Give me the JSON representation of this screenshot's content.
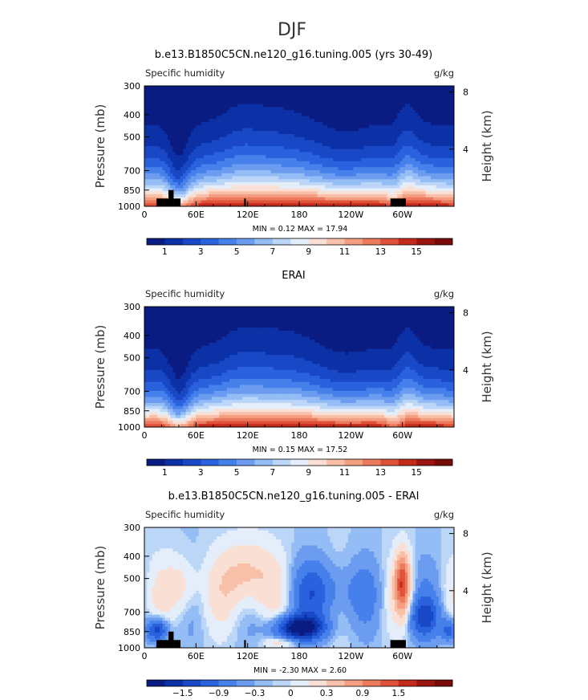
{
  "page_title": "DJF",
  "chart_data": [
    {
      "type": "heatmap",
      "title": "b.e13.B1850C5CN.ne120_g16.tuning.005 (yrs 30-49)",
      "variable_label": "Specific humidity",
      "units_label": "g/kg",
      "ylabel": "Pressure (mb)",
      "y2label": "Height (km)",
      "x_ticks": [
        "0",
        "60E",
        "120E",
        "180",
        "120W",
        "60W"
      ],
      "x_tick_lon": [
        0,
        60,
        120,
        180,
        240,
        300
      ],
      "xlim": [
        0,
        360
      ],
      "y_ticks": [
        "300",
        "400",
        "500",
        "700",
        "850",
        "1000"
      ],
      "y_tick_p": [
        300,
        400,
        500,
        700,
        850,
        1000
      ],
      "ylim": [
        300,
        1000
      ],
      "y2_ticks": [
        "8",
        "4"
      ],
      "y2_tick_km": [
        8,
        4
      ],
      "stats_text": "MIN =    0.12   MAX =   17.94",
      "min": 0.12,
      "max": 17.94,
      "colorbar_labels": [
        "1",
        "3",
        "5",
        "7",
        "9",
        "11",
        "13",
        "15"
      ],
      "colorbar_colors": [
        "#0a1c82",
        "#0c30a6",
        "#1848c6",
        "#2a62de",
        "#4680ea",
        "#6c9cf0",
        "#94bcf5",
        "#bcd6f8",
        "#e4eefb",
        "#fae0d4",
        "#f8c0a8",
        "#f49e82",
        "#ec7a5c",
        "#e05238",
        "#c42a1c",
        "#9a1410",
        "#780a08"
      ]
    },
    {
      "type": "heatmap",
      "title": "ERAI",
      "variable_label": "Specific humidity",
      "units_label": "g/kg",
      "ylabel": "Pressure (mb)",
      "y2label": "Height (km)",
      "x_ticks": [
        "0",
        "60E",
        "120E",
        "180",
        "120W",
        "60W"
      ],
      "x_tick_lon": [
        0,
        60,
        120,
        180,
        240,
        300
      ],
      "xlim": [
        0,
        360
      ],
      "y_ticks": [
        "300",
        "400",
        "500",
        "700",
        "850",
        "1000"
      ],
      "y_tick_p": [
        300,
        400,
        500,
        700,
        850,
        1000
      ],
      "ylim": [
        300,
        1000
      ],
      "y2_ticks": [
        "8",
        "4"
      ],
      "y2_tick_km": [
        8,
        4
      ],
      "stats_text": "MIN =    0.15   MAX =   17.52",
      "min": 0.15,
      "max": 17.52,
      "colorbar_labels": [
        "1",
        "3",
        "5",
        "7",
        "9",
        "11",
        "13",
        "15"
      ],
      "colorbar_colors": [
        "#0a1c82",
        "#0c30a6",
        "#1848c6",
        "#2a62de",
        "#4680ea",
        "#6c9cf0",
        "#94bcf5",
        "#bcd6f8",
        "#e4eefb",
        "#fae0d4",
        "#f8c0a8",
        "#f49e82",
        "#ec7a5c",
        "#e05238",
        "#c42a1c",
        "#9a1410",
        "#780a08"
      ]
    },
    {
      "type": "heatmap",
      "title": "b.e13.B1850C5CN.ne120_g16.tuning.005 - ERAI",
      "variable_label": "Specific humidity",
      "units_label": "g/kg",
      "ylabel": "Pressure (mb)",
      "y2label": "Height (km)",
      "x_ticks": [
        "0",
        "60E",
        "120E",
        "180",
        "120W",
        "60W"
      ],
      "x_tick_lon": [
        0,
        60,
        120,
        180,
        240,
        300
      ],
      "xlim": [
        0,
        360
      ],
      "y_ticks": [
        "300",
        "400",
        "500",
        "700",
        "850",
        "1000"
      ],
      "y_tick_p": [
        300,
        400,
        500,
        700,
        850,
        1000
      ],
      "ylim": [
        300,
        1000
      ],
      "y2_ticks": [
        "8",
        "4"
      ],
      "y2_tick_km": [
        8,
        4
      ],
      "stats_text": "MIN =   -2.30   MAX =    2.60",
      "min": -2.3,
      "max": 2.6,
      "colorbar_labels": [
        "−1.5",
        "−0.9",
        "−0.3",
        "0",
        "0.3",
        "0.9",
        "1.5"
      ],
      "colorbar_colors": [
        "#0a1c82",
        "#0c30a6",
        "#1848c6",
        "#2a62de",
        "#4680ea",
        "#6c9cf0",
        "#94bcf5",
        "#bcd6f8",
        "#e4eefb",
        "#fae0d4",
        "#f8c0a8",
        "#f49e82",
        "#ec7a5c",
        "#e05238",
        "#c42a1c",
        "#9a1410",
        "#780a08"
      ]
    }
  ]
}
